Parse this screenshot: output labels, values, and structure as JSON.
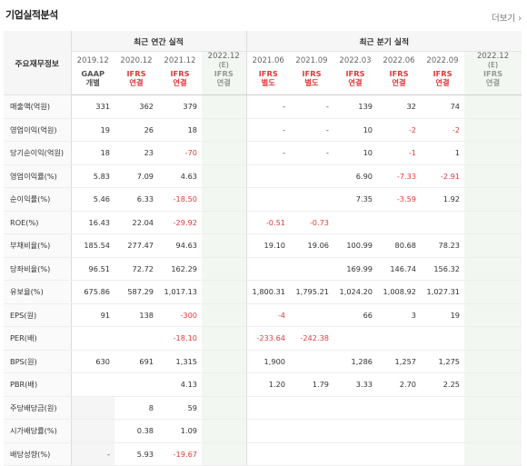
{
  "header": {
    "title": "기업실적분석",
    "more": "더보기 ›"
  },
  "table": {
    "label_header": "주요재무정보",
    "group_annual": "최근 연간 실적",
    "group_quarter": "최근 분기 실적",
    "periods": [
      "2019.12",
      "2020.12",
      "2021.12",
      "2022.12",
      "2021.06",
      "2021.09",
      "2022.03",
      "2022.06",
      "2022.09",
      "2022.12"
    ],
    "estimate_mark": "(E)",
    "standards": [
      [
        "GAAP",
        "개별"
      ],
      [
        "IFRS",
        "연결"
      ],
      [
        "IFRS",
        "연결"
      ],
      [
        "IFRS",
        "연결"
      ],
      [
        "IFRS",
        "별도"
      ],
      [
        "IFRS",
        "별도"
      ],
      [
        "IFRS",
        "연결"
      ],
      [
        "IFRS",
        "연결"
      ],
      [
        "IFRS",
        "연결"
      ],
      [
        "IFRS",
        "연결"
      ]
    ],
    "rows": [
      {
        "label": "매출액(억원)",
        "values": [
          "331",
          "362",
          "379",
          "",
          "-",
          "-",
          "139",
          "32",
          "74",
          ""
        ]
      },
      {
        "label": "영업이익(억원)",
        "values": [
          "19",
          "26",
          "18",
          "",
          "-",
          "-",
          "10",
          "-2",
          "-2",
          ""
        ]
      },
      {
        "label": "당기순이익(억원)",
        "values": [
          "18",
          "23",
          "-70",
          "",
          "-",
          "-",
          "10",
          "-1",
          "1",
          ""
        ]
      },
      {
        "label": "영업이익률(%)",
        "values": [
          "5.83",
          "7.09",
          "4.63",
          "",
          "",
          "",
          "6.90",
          "-7.33",
          "-2.91",
          ""
        ]
      },
      {
        "label": "순이익률(%)",
        "values": [
          "5.46",
          "6.33",
          "-18.50",
          "",
          "",
          "",
          "7.35",
          "-3.59",
          "1.92",
          ""
        ]
      },
      {
        "label": "ROE(%)",
        "values": [
          "16.43",
          "22.04",
          "-29.92",
          "",
          "-0.51",
          "-0.73",
          "",
          "",
          "",
          ""
        ]
      },
      {
        "label": "부채비율(%)",
        "values": [
          "185.54",
          "277.47",
          "94.63",
          "",
          "19.10",
          "19.06",
          "100.99",
          "80.68",
          "78.23",
          ""
        ]
      },
      {
        "label": "당좌비율(%)",
        "values": [
          "96.51",
          "72.72",
          "162.29",
          "",
          "",
          "",
          "169.99",
          "146.74",
          "156.32",
          ""
        ]
      },
      {
        "label": "유보율(%)",
        "values": [
          "675.86",
          "587.29",
          "1,017.13",
          "",
          "1,800.31",
          "1,795.21",
          "1,024.20",
          "1,008.92",
          "1,027.31",
          ""
        ]
      },
      {
        "label": "EPS(원)",
        "values": [
          "91",
          "138",
          "-300",
          "",
          "-4",
          "",
          "66",
          "3",
          "19",
          ""
        ]
      },
      {
        "label": "PER(배)",
        "values": [
          "",
          "",
          "-18.10",
          "",
          "-233.64",
          "-242.38",
          "",
          "",
          "",
          ""
        ]
      },
      {
        "label": "BPS(원)",
        "values": [
          "630",
          "691",
          "1,315",
          "",
          "1,900",
          "",
          "1,286",
          "1,257",
          "1,275",
          ""
        ]
      },
      {
        "label": "PBR(배)",
        "values": [
          "",
          "",
          "4.13",
          "",
          "1.20",
          "1.79",
          "3.33",
          "2.70",
          "2.25",
          ""
        ]
      },
      {
        "label": "주당배당금(원)",
        "values": [
          "",
          "8",
          "59",
          "",
          "",
          "",
          "",
          "",
          "",
          ""
        ]
      },
      {
        "label": "시가배당률(%)",
        "values": [
          "",
          "0.38",
          "1.09",
          "",
          "",
          "",
          "",
          "",
          "",
          ""
        ]
      },
      {
        "label": "배당성향(%)",
        "values": [
          "-",
          "5.93",
          "-19.67",
          "",
          "",
          "",
          "",
          "",
          "",
          ""
        ]
      }
    ]
  }
}
